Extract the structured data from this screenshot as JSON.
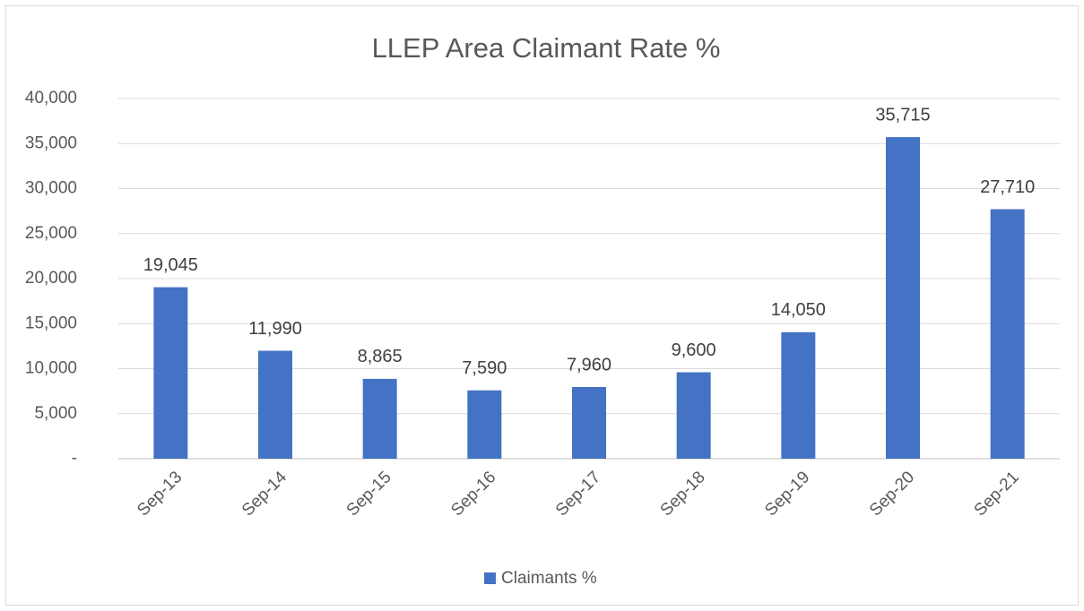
{
  "chart_data": {
    "type": "bar",
    "title": "LLEP Area Claimant Rate %",
    "categories": [
      "Sep-13",
      "Sep-14",
      "Sep-15",
      "Sep-16",
      "Sep-17",
      "Sep-18",
      "Sep-19",
      "Sep-20",
      "Sep-21"
    ],
    "series": [
      {
        "name": "Claimants %",
        "color": "#4472c4",
        "values": [
          19045,
          11990,
          8865,
          7590,
          7960,
          9600,
          14050,
          35715,
          27710
        ],
        "value_labels": [
          "19,045",
          "11,990",
          "8,865",
          "7,590",
          "7,960",
          "9,600",
          "14,050",
          "35,715",
          "27,710"
        ]
      }
    ],
    "ylim": [
      0,
      40000
    ],
    "yticks": [
      {
        "value": 0,
        "label": "-"
      },
      {
        "value": 5000,
        "label": "5,000"
      },
      {
        "value": 10000,
        "label": "10,000"
      },
      {
        "value": 15000,
        "label": "15,000"
      },
      {
        "value": 20000,
        "label": "20,000"
      },
      {
        "value": 25000,
        "label": "25,000"
      },
      {
        "value": 30000,
        "label": "30,000"
      },
      {
        "value": 35000,
        "label": "35,000"
      },
      {
        "value": 40000,
        "label": "40,000"
      }
    ],
    "grid": true,
    "legend": "bottom"
  }
}
